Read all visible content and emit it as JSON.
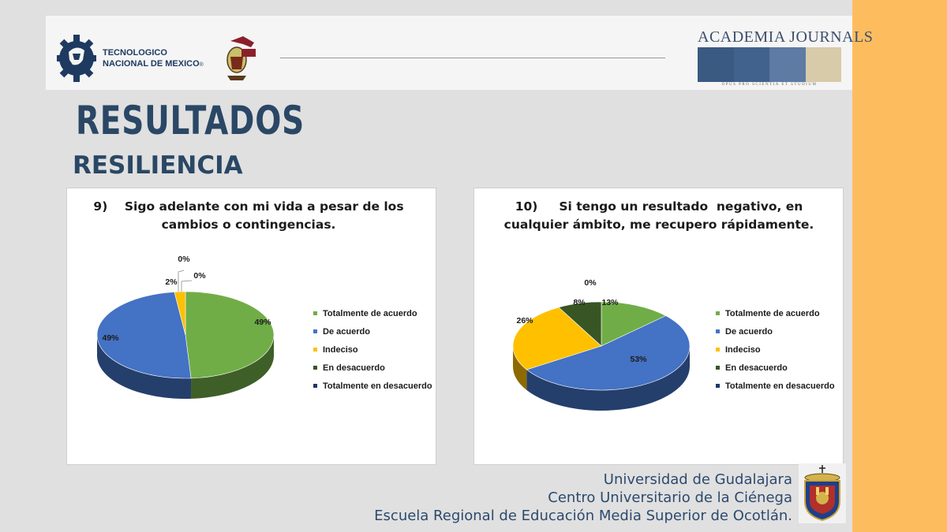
{
  "header": {
    "tecnm_line1": "TECNOLOGICO",
    "tecnm_line2": "NACIONAL DE MEXICO",
    "tecnm_mark": "®",
    "journal_title": "ACADEMIA JOURNALS",
    "journal_motto": "OPUS PRO SCIENTIA ET STUDIUM",
    "journal_block_colors": [
      "#3b5a82",
      "#41628c",
      "#5d7ba3",
      "#d8cbaa"
    ]
  },
  "page": {
    "title": "RESULTADOS",
    "subtitle": "RESILIENCIA"
  },
  "colors": {
    "accent_side": "#fdbd5f",
    "title": "#2a4765"
  },
  "chart_data": [
    {
      "type": "pie",
      "title_line1": "9)    Sigo adelante con mi vida a pesar de los",
      "title_line2": "cambios o contingencias.",
      "categories": [
        "Totalmente de acuerdo",
        "De acuerdo",
        "Indeciso",
        "En desacuerdo",
        "Totalmente en desacuerdo"
      ],
      "values": [
        49,
        49,
        2,
        0,
        0
      ],
      "data_labels": [
        "49%",
        "49%",
        "2%",
        "0%",
        "0%"
      ],
      "colors": [
        "#70ad47",
        "#4472c4",
        "#ffc000",
        "#375623",
        "#1f3864"
      ],
      "legend_position": "right"
    },
    {
      "type": "pie",
      "title_line1": "10)     Si tengo un resultado  negativo, en",
      "title_line2": "cualquier ámbito, me recupero rápidamente.",
      "categories": [
        "Totalmente de acuerdo",
        "De acuerdo",
        "Indeciso",
        "En desacuerdo",
        "Totalmente en desacuerdo"
      ],
      "values": [
        13,
        53,
        26,
        8,
        0
      ],
      "data_labels": [
        "13%",
        "53%",
        "26%",
        "8%",
        "0%"
      ],
      "colors": [
        "#70ad47",
        "#4472c4",
        "#ffc000",
        "#375623",
        "#1f3864"
      ],
      "legend_position": "right"
    }
  ],
  "footer": {
    "line1": "Universidad de Gudalajara",
    "line2": "Centro Universitario de la Ciénega",
    "line3": "Escuela Regional de Educación Media Superior de Ocotlán."
  }
}
